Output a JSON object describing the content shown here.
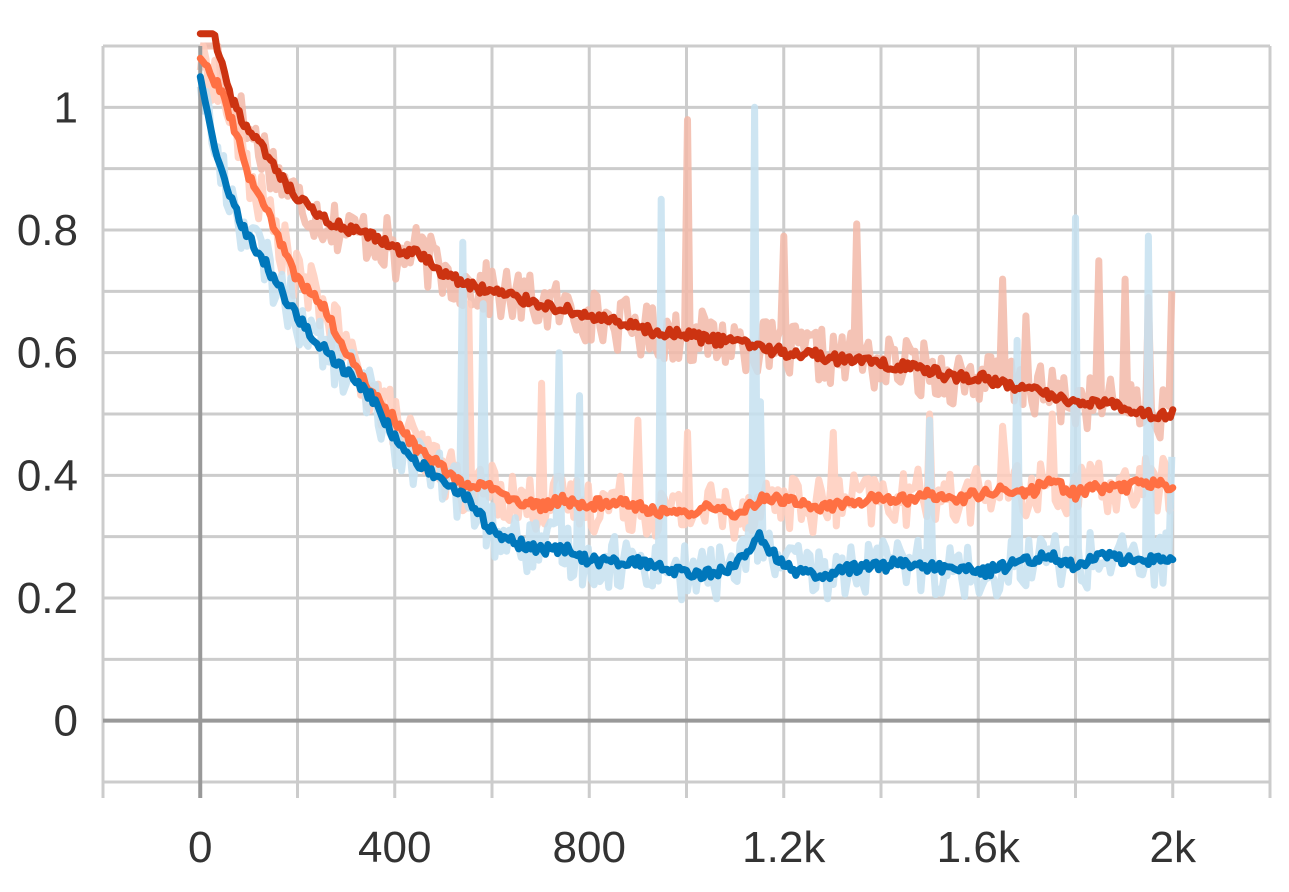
{
  "chart_data": {
    "type": "line",
    "title": "",
    "xlabel": "",
    "ylabel": "",
    "xlim": [
      -200,
      2200
    ],
    "ylim": [
      -0.1,
      1.1
    ],
    "x_ticks": [
      0,
      400,
      800,
      1200,
      1600,
      2000
    ],
    "x_tick_labels": [
      "0",
      "400",
      "800",
      "1.2k",
      "1.6k",
      "2k"
    ],
    "y_ticks": [
      0,
      0.2,
      0.4,
      0.6,
      0.8,
      1
    ],
    "y_tick_labels": [
      "0",
      "0.2",
      "0.4",
      "0.6",
      "0.8",
      "1"
    ],
    "grid": true,
    "legend": "none",
    "series": [
      {
        "color": "#cc3311",
        "raw_color": "#f2b8a8",
        "x": [
          0,
          20,
          40,
          60,
          80,
          100,
          130,
          160,
          200,
          250,
          300,
          350,
          400,
          450,
          500,
          550,
          600,
          650,
          700,
          750,
          800,
          850,
          900,
          950,
          1000,
          1050,
          1100,
          1150,
          1200,
          1250,
          1300,
          1350,
          1400,
          1450,
          1500,
          1550,
          1600,
          1650,
          1700,
          1750,
          1800,
          1850,
          1900,
          1950,
          2000
        ],
        "values": [
          1.2,
          1.15,
          1.08,
          1.02,
          0.99,
          0.96,
          0.93,
          0.89,
          0.85,
          0.82,
          0.8,
          0.79,
          0.77,
          0.76,
          0.73,
          0.71,
          0.7,
          0.69,
          0.68,
          0.67,
          0.66,
          0.65,
          0.64,
          0.63,
          0.63,
          0.62,
          0.62,
          0.61,
          0.6,
          0.6,
          0.59,
          0.59,
          0.58,
          0.58,
          0.57,
          0.56,
          0.56,
          0.55,
          0.54,
          0.53,
          0.52,
          0.52,
          0.51,
          0.5,
          0.5
        ],
        "spikes": [
          [
            1000,
            0.98
          ],
          [
            1200,
            0.79
          ],
          [
            1350,
            0.81
          ],
          [
            1650,
            0.72
          ],
          [
            1700,
            0.66
          ],
          [
            1850,
            0.75
          ],
          [
            1900,
            0.72
          ],
          [
            1950,
            0.69
          ],
          [
            2000,
            0.7
          ],
          [
            400,
            0.72
          ],
          [
            650,
            0.7
          ],
          [
            800,
            0.67
          ]
        ]
      },
      {
        "color": "#ff7043",
        "raw_color": "#ffccbc",
        "x": [
          0,
          20,
          40,
          60,
          80,
          100,
          130,
          160,
          200,
          250,
          300,
          350,
          400,
          450,
          500,
          550,
          600,
          650,
          700,
          750,
          800,
          850,
          900,
          950,
          1000,
          1050,
          1100,
          1150,
          1200,
          1250,
          1300,
          1350,
          1400,
          1450,
          1500,
          1550,
          1600,
          1650,
          1700,
          1750,
          1800,
          1850,
          1900,
          1950,
          2000
        ],
        "values": [
          1.08,
          1.06,
          1.03,
          0.99,
          0.94,
          0.89,
          0.84,
          0.79,
          0.72,
          0.68,
          0.6,
          0.54,
          0.49,
          0.44,
          0.41,
          0.38,
          0.38,
          0.36,
          0.35,
          0.36,
          0.35,
          0.36,
          0.35,
          0.34,
          0.34,
          0.35,
          0.34,
          0.36,
          0.36,
          0.35,
          0.35,
          0.36,
          0.36,
          0.36,
          0.37,
          0.36,
          0.37,
          0.38,
          0.37,
          0.39,
          0.37,
          0.38,
          0.38,
          0.39,
          0.38
        ],
        "spikes": [
          [
            550,
            0.68
          ],
          [
            700,
            0.55
          ],
          [
            900,
            0.49
          ],
          [
            1000,
            0.47
          ],
          [
            1300,
            0.47
          ],
          [
            1500,
            0.5
          ],
          [
            1650,
            0.48
          ],
          [
            1750,
            0.5
          ],
          [
            1850,
            0.42
          ]
        ]
      },
      {
        "color": "#0077bb",
        "raw_color": "#c6e0f0",
        "x": [
          0,
          20,
          40,
          60,
          80,
          100,
          130,
          160,
          200,
          250,
          300,
          350,
          400,
          450,
          500,
          550,
          600,
          650,
          700,
          750,
          800,
          850,
          900,
          950,
          1000,
          1050,
          1100,
          1150,
          1200,
          1250,
          1300,
          1350,
          1400,
          1450,
          1500,
          1550,
          1600,
          1650,
          1700,
          1750,
          1800,
          1850,
          1900,
          1950,
          2000
        ],
        "values": [
          1.05,
          0.97,
          0.9,
          0.86,
          0.82,
          0.79,
          0.75,
          0.71,
          0.66,
          0.61,
          0.57,
          0.53,
          0.46,
          0.42,
          0.39,
          0.36,
          0.31,
          0.29,
          0.28,
          0.28,
          0.26,
          0.26,
          0.26,
          0.25,
          0.24,
          0.24,
          0.25,
          0.3,
          0.25,
          0.24,
          0.24,
          0.25,
          0.25,
          0.26,
          0.25,
          0.25,
          0.24,
          0.25,
          0.26,
          0.27,
          0.25,
          0.27,
          0.26,
          0.26,
          0.27
        ],
        "spikes": [
          [
            540,
            0.78
          ],
          [
            580,
            0.68
          ],
          [
            740,
            0.6
          ],
          [
            780,
            0.53
          ],
          [
            950,
            0.85
          ],
          [
            1140,
            1.0
          ],
          [
            1150,
            0.52
          ],
          [
            1500,
            0.49
          ],
          [
            1680,
            0.62
          ],
          [
            1800,
            0.82
          ],
          [
            1950,
            0.79
          ],
          [
            2000,
            0.43
          ]
        ]
      }
    ]
  }
}
